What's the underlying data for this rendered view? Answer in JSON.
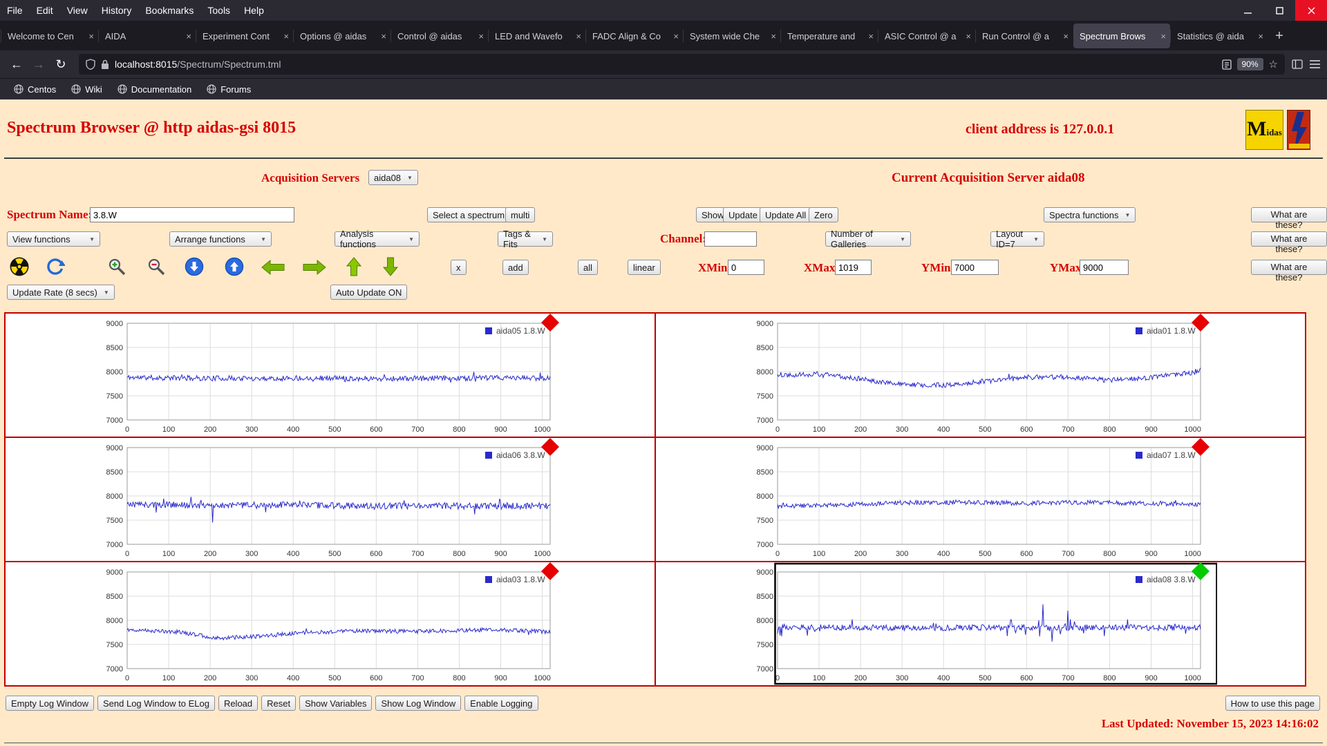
{
  "browser": {
    "menubar": [
      "File",
      "Edit",
      "View",
      "History",
      "Bookmarks",
      "Tools",
      "Help"
    ],
    "tabs": [
      {
        "label": "Welcome to Cen"
      },
      {
        "label": "AIDA"
      },
      {
        "label": "Experiment Cont"
      },
      {
        "label": "Options @ aidas"
      },
      {
        "label": "Control @ aidas"
      },
      {
        "label": "LED and Wavefo"
      },
      {
        "label": "FADC Align & Co"
      },
      {
        "label": "System wide Che"
      },
      {
        "label": "Temperature and"
      },
      {
        "label": "ASIC Control @ a"
      },
      {
        "label": "Run Control @ a"
      },
      {
        "label": "Spectrum Brows",
        "active": true
      },
      {
        "label": "Statistics @ aida"
      }
    ],
    "nav": {
      "url_host": "localhost:8015",
      "url_path": "/Spectrum/Spectrum.tml",
      "zoom_badge": "90%"
    },
    "bookmarks": [
      "Centos",
      "Wiki",
      "Documentation",
      "Forums"
    ]
  },
  "icons": {
    "tab_close": "×",
    "new_tab": "+",
    "back": "←",
    "forward": "→",
    "reload": "↻",
    "star": "☆",
    "down_arrow": "▼",
    "up_arrow": "▲"
  },
  "page": {
    "title": "Spectrum Browser @ http aidas-gsi 8015",
    "client_address": "client address is 127.0.0.1",
    "logos": {
      "midas_m": "M",
      "midas_rest": "idas"
    },
    "acq_label": "Acquisition Servers",
    "acq_value": "aida08",
    "current_server": "Current Acquisition Server aida08",
    "spectrum_name_label": "Spectrum Name:",
    "spectrum_name_value": "3.8.W",
    "select_spectrum": "Select a spectrum",
    "multi": "multi",
    "show": "Show",
    "update": "Update",
    "update_all": "Update All",
    "zero": "Zero",
    "spectra_functions": "Spectra functions",
    "what": "What are these?",
    "view_functions": "View functions",
    "arrange_functions": "Arrange functions",
    "analysis_functions": "Analysis functions",
    "tags_fits": "Tags & Fits",
    "channel_label": "Channel:",
    "channel_value": "",
    "galleries": "Number of Galleries",
    "layout": "Layout ID=7",
    "x_btn": "x",
    "add": "add",
    "all": "all",
    "linear": "linear",
    "xmin_label": "XMin",
    "xmin": "0",
    "xmax_label": "XMax",
    "xmax": "1019",
    "ymin_label": "YMin",
    "ymin": "7000",
    "ymax_label": "YMax",
    "ymax": "9000",
    "update_rate": "Update Rate (8 secs)",
    "auto_update": "Auto Update ON",
    "log_buttons": [
      "Empty Log Window",
      "Send Log Window to ELog",
      "Reload",
      "Reset",
      "Show Variables",
      "Show Log Window",
      "Enable Logging"
    ],
    "how_to": "How to use this page",
    "last_updated": "Last Updated: November 15, 2023 14:16:02"
  },
  "chart_config": {
    "type": "line",
    "xlim": [
      0,
      1019
    ],
    "ylim": [
      7000,
      9000
    ],
    "xticks": [
      0,
      100,
      200,
      300,
      400,
      500,
      600,
      700,
      800,
      900,
      1000
    ],
    "yticks": [
      7000,
      7500,
      8000,
      8500,
      9000
    ],
    "grid": true,
    "line_color": "#2a2acc",
    "marker_colors": {
      "red": "#e60000",
      "green": "#00cc00"
    }
  },
  "chart_data": [
    {
      "type": "line",
      "legend": "aida05 1.8.W",
      "marker": "red",
      "seed": 11,
      "noise": 55,
      "spike": 0.02,
      "spike_scale": 2.4,
      "trend": [
        [
          0,
          7880
        ],
        [
          150,
          7865
        ],
        [
          300,
          7860
        ],
        [
          450,
          7870
        ],
        [
          600,
          7855
        ],
        [
          750,
          7860
        ],
        [
          900,
          7870
        ],
        [
          1019,
          7865
        ]
      ]
    },
    {
      "type": "line",
      "legend": "aida01 1.8.W",
      "marker": "red",
      "seed": 22,
      "noise": 52,
      "spike": 0.02,
      "spike_scale": 2.2,
      "trend": [
        [
          0,
          7930
        ],
        [
          100,
          7950
        ],
        [
          200,
          7850
        ],
        [
          300,
          7730
        ],
        [
          400,
          7720
        ],
        [
          500,
          7800
        ],
        [
          600,
          7880
        ],
        [
          700,
          7890
        ],
        [
          800,
          7820
        ],
        [
          900,
          7880
        ],
        [
          1000,
          7980
        ],
        [
          1019,
          8040
        ]
      ]
    },
    {
      "type": "line",
      "legend": "aida06 3.8.W",
      "marker": "red",
      "seed": 33,
      "noise": 68,
      "spike": 0.025,
      "spike_scale": 2.6,
      "spikes": [
        [
          205,
          7450
        ]
      ],
      "trend": [
        [
          0,
          7825
        ],
        [
          200,
          7805
        ],
        [
          400,
          7810
        ],
        [
          600,
          7790
        ],
        [
          800,
          7795
        ],
        [
          1019,
          7790
        ]
      ]
    },
    {
      "type": "line",
      "legend": "aida07 1.8.W",
      "marker": "red",
      "seed": 44,
      "noise": 48,
      "spike": 0.02,
      "spike_scale": 2.0,
      "trend": [
        [
          0,
          7790
        ],
        [
          150,
          7810
        ],
        [
          300,
          7860
        ],
        [
          450,
          7870
        ],
        [
          600,
          7850
        ],
        [
          750,
          7870
        ],
        [
          900,
          7840
        ],
        [
          1019,
          7815
        ]
      ]
    },
    {
      "type": "line",
      "legend": "aida03 1.8.W",
      "marker": "red",
      "seed": 55,
      "noise": 42,
      "spike": 0.02,
      "spike_scale": 2.2,
      "trend": [
        [
          0,
          7810
        ],
        [
          120,
          7760
        ],
        [
          220,
          7630
        ],
        [
          300,
          7660
        ],
        [
          420,
          7740
        ],
        [
          550,
          7780
        ],
        [
          700,
          7770
        ],
        [
          850,
          7800
        ],
        [
          950,
          7790
        ],
        [
          1019,
          7755
        ]
      ]
    },
    {
      "type": "line",
      "legend": "aida08 3.8.W",
      "marker": "green",
      "seed": 66,
      "noise": 60,
      "spike": 0.035,
      "spike_scale": 3.2,
      "active": true,
      "burst": [
        560,
        760
      ],
      "spikes": [
        [
          640,
          8330
        ],
        [
          662,
          7560
        ],
        [
          700,
          8200
        ]
      ],
      "trend": [
        [
          0,
          7860
        ],
        [
          200,
          7850
        ],
        [
          400,
          7845
        ],
        [
          600,
          7855
        ],
        [
          800,
          7850
        ],
        [
          1019,
          7845
        ]
      ]
    }
  ]
}
